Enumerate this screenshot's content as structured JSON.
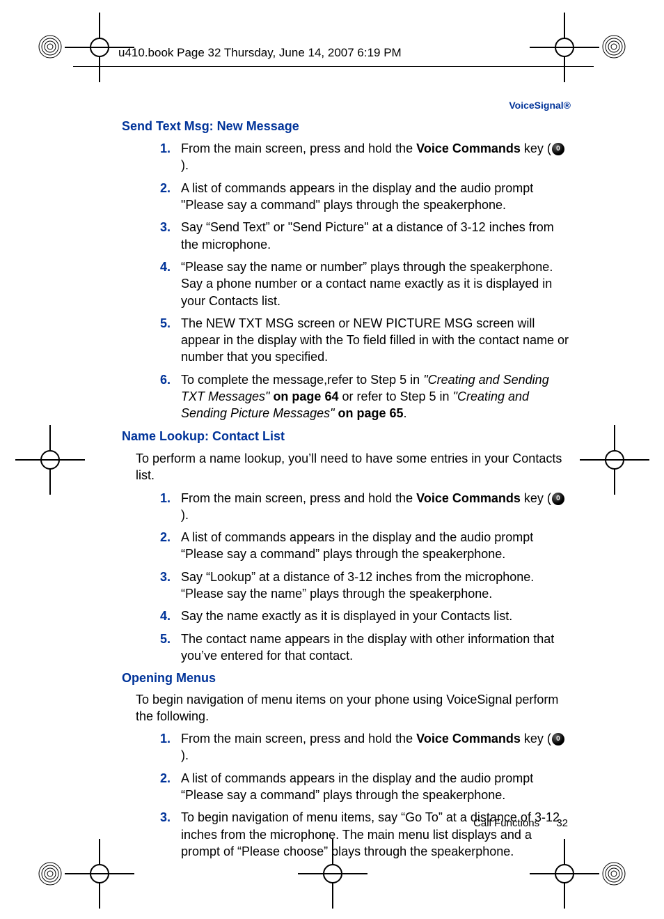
{
  "crop_header": "u410.book  Page 32  Thursday, June 14, 2007  6:19 PM",
  "section_label": "VoiceSignal®",
  "sections": [
    {
      "level": "h3",
      "title": "Send Text Msg: New Message",
      "intro": null,
      "steps": [
        {
          "n": "1.",
          "pre": "From the main screen, press and hold the ",
          "bold": "Voice Commands",
          "mid": " key (",
          "icon": true,
          "post": ")."
        },
        {
          "n": "2.",
          "text": "A list of commands appears in the display and the audio prompt \"Please say a command\" plays through the speakerphone."
        },
        {
          "n": "3.",
          "text": "Say “Send Text” or \"Send Picture\" at a distance of 3-12 inches from the microphone."
        },
        {
          "n": "4.",
          "text": "“Please say the name or number” plays through the speakerphone. Say a phone number or a contact name exactly as it is displayed in your Contacts list."
        },
        {
          "n": "5.",
          "text": "The NEW TXT MSG screen or NEW PICTURE MSG screen will appear in the display with the To field filled in with the contact name or number that you specified."
        },
        {
          "n": "6.",
          "rich": [
            {
              "t": "To complete the message,refer to Step 5 in "
            },
            {
              "t": "\"Creating and Sending TXT Messages\"",
              "italic": true
            },
            {
              "t": " on page 64",
              "bold": true
            },
            {
              "t": " or refer to Step 5 in "
            },
            {
              "t": "\"Creating and Sending Picture Messages\"",
              "italic": true
            },
            {
              "t": " on page 65",
              "bold": true
            },
            {
              "t": "."
            }
          ]
        }
      ]
    },
    {
      "level": "h3",
      "title": "Name Lookup: Contact List",
      "intro": "To perform a name lookup, you’ll need to have some entries in your Contacts list.",
      "steps": [
        {
          "n": "1.",
          "pre": "From the main screen, press and hold the ",
          "bold": "Voice Commands",
          "mid": " key (",
          "icon": true,
          "post": ")."
        },
        {
          "n": "2.",
          "text": "A list of commands appears in the display and the audio prompt “Please say a command” plays through the speakerphone."
        },
        {
          "n": "3.",
          "text": "Say “Lookup” at a distance of 3-12 inches from the microphone. “Please say the name” plays through the speakerphone."
        },
        {
          "n": "4.",
          "text": "Say the name exactly as it is displayed in your Contacts list."
        },
        {
          "n": "5.",
          "text": "The contact name appears in the display with other information that you’ve entered for that contact."
        }
      ]
    },
    {
      "level": "h2",
      "title": "Opening Menus",
      "intro": "To begin navigation of menu items on your phone using VoiceSignal perform the following.",
      "steps": [
        {
          "n": "1.",
          "pre": "From the main screen, press and hold the ",
          "bold": "Voice Commands",
          "mid": " key (",
          "icon": true,
          "post": ")."
        },
        {
          "n": "2.",
          "text": "A list of commands appears in the display and the audio prompt “Please say a command” plays through the speakerphone."
        },
        {
          "n": "3.",
          "text": "To begin navigation of menu items, say “Go To” at a distance of 3-12 inches from the microphone. The main menu list displays and a prompt of “Please choose” plays through the speakerphone."
        }
      ]
    }
  ],
  "footer": {
    "label": "Call Functions",
    "page": "32"
  },
  "colors": {
    "heading": "#003399",
    "text": "#000000",
    "background": "#ffffff"
  }
}
